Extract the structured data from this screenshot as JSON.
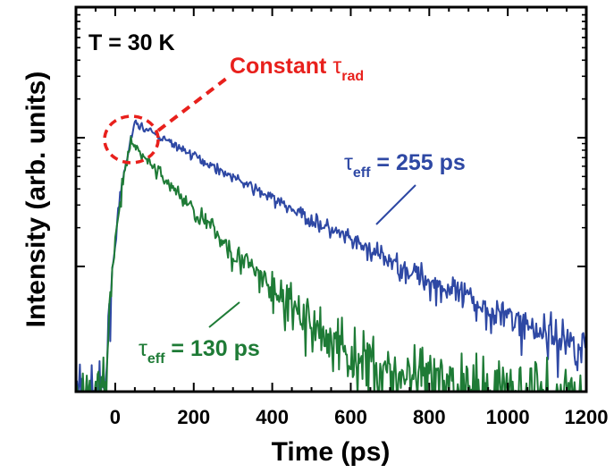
{
  "chart_data": {
    "type": "line",
    "title": "",
    "xlabel": "Time (ps)",
    "ylabel": "Intensity (arb. units)",
    "xlim": [
      -100,
      1200
    ],
    "x_ticks": [
      0,
      200,
      400,
      600,
      800,
      1000,
      1200
    ],
    "y_scale": "log",
    "y_tick_labels_shown": false,
    "grid": false,
    "temperature_label": "T = 30 K",
    "annotation": {
      "text": "Constant",
      "symbol": "τ",
      "subscript": "rad",
      "color": "#e8201c",
      "marks": "peak region circled"
    },
    "series": [
      {
        "label_symbol": "τ",
        "label_sub": "eff",
        "label_value": " = 255 ps",
        "color": "#2e48a4",
        "lifetime_ps": 255,
        "peak_time_ps": 50
      },
      {
        "label_symbol": "τ",
        "label_sub": "eff",
        "label_value": " = 130 ps",
        "color": "#1e7b36",
        "lifetime_ps": 130,
        "peak_time_ps": 40
      }
    ]
  }
}
